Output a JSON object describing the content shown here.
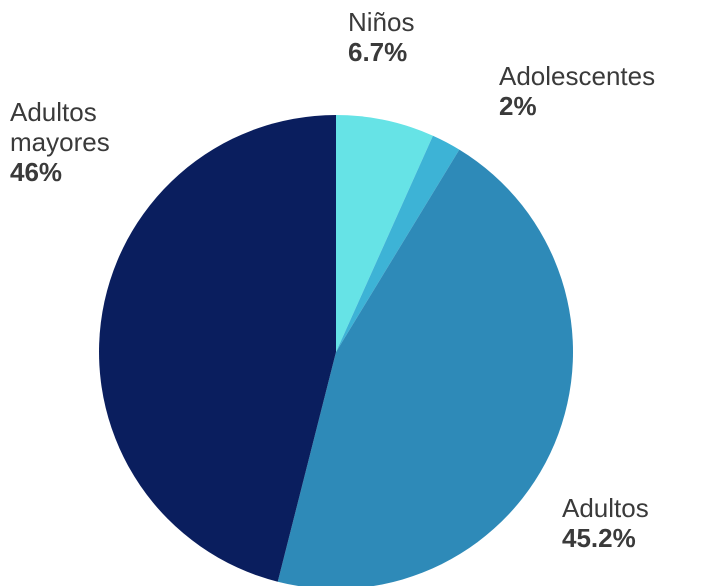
{
  "chart_data": {
    "type": "pie",
    "title": "",
    "slices": [
      {
        "label": "Niños",
        "value": 6.7,
        "value_label": "6.7%",
        "color": "#66e3e6"
      },
      {
        "label": "Adolescentes",
        "value": 2,
        "value_label": "2%",
        "color": "#3db3d6"
      },
      {
        "label": "Adultos",
        "value": 45.2,
        "value_label": "45.2%",
        "color": "#2e8ab8"
      },
      {
        "label": "Adultos mayores",
        "value": 46,
        "value_label": "46%",
        "color": "#0a1e5e"
      }
    ],
    "start_angle": "top",
    "direction": "clockwise"
  }
}
